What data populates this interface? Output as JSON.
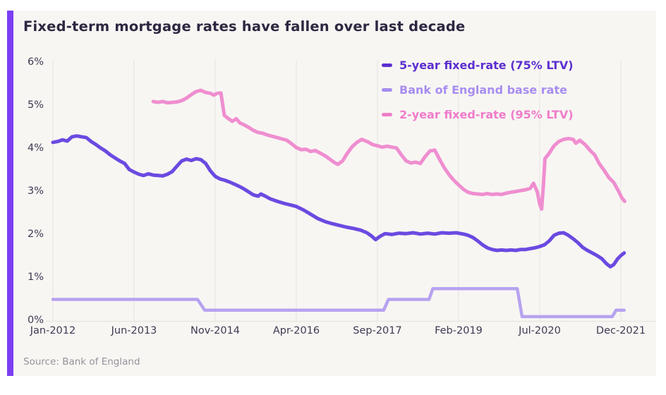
{
  "theme": {
    "accent": "#7b3ff2",
    "card_bg": "#f8f6f3",
    "title_color": "#2e2741",
    "tick_color": "#3f3a52",
    "grid_color": "#eceae6",
    "axis_line_color": "#e7e4df",
    "source_color": "#96939b"
  },
  "chart_data": {
    "type": "line",
    "title": "Fixed-term mortgage rates have fallen over last decade",
    "source": "Source: Bank of England",
    "x_unit": "months since Jan-2012",
    "xlim_months": [
      0,
      119.8
    ],
    "ylim": [
      0,
      6
    ],
    "grid": "vertical-only",
    "legend_position": "top-right",
    "y_ticks": [
      {
        "label": "0%",
        "value": 0
      },
      {
        "label": "1%",
        "value": 1
      },
      {
        "label": "2%",
        "value": 2
      },
      {
        "label": "3%",
        "value": 3
      },
      {
        "label": "4%",
        "value": 4
      },
      {
        "label": "5%",
        "value": 5
      },
      {
        "label": "6%",
        "value": 6
      }
    ],
    "x_ticks": [
      {
        "label": "Jan-2012",
        "month": 0
      },
      {
        "label": "Jun-2013",
        "month": 17
      },
      {
        "label": "Nov-2014",
        "month": 34
      },
      {
        "label": "Apr-2016",
        "month": 51
      },
      {
        "label": "Sep-2017",
        "month": 68
      },
      {
        "label": "Feb-2019",
        "month": 85
      },
      {
        "label": "Jul-2020",
        "month": 102
      },
      {
        "label": "Dec-2021",
        "month": 119
      }
    ],
    "series": [
      {
        "id": "five-year-fixed-rate-75-ltv",
        "name": "5-year fixed-rate (75% LTV)",
        "color": "#6b4ae1",
        "legend_color": "#5c2fd0",
        "width": 5,
        "points": [
          [
            0,
            4.15
          ],
          [
            1,
            4.17
          ],
          [
            2,
            4.21
          ],
          [
            3,
            4.18
          ],
          [
            4,
            4.28
          ],
          [
            5,
            4.3
          ],
          [
            6,
            4.28
          ],
          [
            7,
            4.26
          ],
          [
            8,
            4.17
          ],
          [
            9,
            4.1
          ],
          [
            10,
            4.02
          ],
          [
            11,
            3.95
          ],
          [
            12,
            3.86
          ],
          [
            13,
            3.79
          ],
          [
            14,
            3.72
          ],
          [
            15,
            3.66
          ],
          [
            16,
            3.52
          ],
          [
            17,
            3.46
          ],
          [
            18,
            3.41
          ],
          [
            19,
            3.38
          ],
          [
            20,
            3.42
          ],
          [
            21,
            3.39
          ],
          [
            22,
            3.38
          ],
          [
            23,
            3.37
          ],
          [
            24,
            3.41
          ],
          [
            25,
            3.47
          ],
          [
            26,
            3.6
          ],
          [
            27,
            3.72
          ],
          [
            28,
            3.76
          ],
          [
            29,
            3.73
          ],
          [
            30,
            3.77
          ],
          [
            31,
            3.75
          ],
          [
            32,
            3.66
          ],
          [
            33,
            3.49
          ],
          [
            34,
            3.36
          ],
          [
            35,
            3.3
          ],
          [
            36,
            3.27
          ],
          [
            37,
            3.23
          ],
          [
            38,
            3.18
          ],
          [
            39,
            3.13
          ],
          [
            40,
            3.07
          ],
          [
            41,
            3.0
          ],
          [
            42,
            2.93
          ],
          [
            43,
            2.9
          ],
          [
            43.6,
            2.95
          ],
          [
            44.5,
            2.9
          ],
          [
            45.5,
            2.84
          ],
          [
            47,
            2.78
          ],
          [
            48.5,
            2.73
          ],
          [
            50,
            2.69
          ],
          [
            51,
            2.66
          ],
          [
            52.5,
            2.58
          ],
          [
            54,
            2.48
          ],
          [
            55.5,
            2.38
          ],
          [
            57,
            2.31
          ],
          [
            58.5,
            2.26
          ],
          [
            60,
            2.22
          ],
          [
            61.5,
            2.18
          ],
          [
            63,
            2.15
          ],
          [
            64.5,
            2.11
          ],
          [
            65.8,
            2.05
          ],
          [
            66.8,
            1.97
          ],
          [
            67.6,
            1.89
          ],
          [
            68.6,
            1.97
          ],
          [
            69.6,
            2.03
          ],
          [
            71,
            2.01
          ],
          [
            72.5,
            2.04
          ],
          [
            74,
            2.03
          ],
          [
            75.5,
            2.05
          ],
          [
            77,
            2.02
          ],
          [
            78.5,
            2.04
          ],
          [
            80,
            2.02
          ],
          [
            81.5,
            2.05
          ],
          [
            83,
            2.04
          ],
          [
            84.5,
            2.05
          ],
          [
            86,
            2.02
          ],
          [
            87,
            1.99
          ],
          [
            88,
            1.94
          ],
          [
            89,
            1.86
          ],
          [
            90,
            1.77
          ],
          [
            91,
            1.7
          ],
          [
            92,
            1.66
          ],
          [
            93,
            1.64
          ],
          [
            94,
            1.65
          ],
          [
            95,
            1.64
          ],
          [
            96,
            1.65
          ],
          [
            97,
            1.64
          ],
          [
            98,
            1.66
          ],
          [
            99,
            1.66
          ],
          [
            100,
            1.68
          ],
          [
            101,
            1.7
          ],
          [
            102,
            1.73
          ],
          [
            103,
            1.77
          ],
          [
            104,
            1.86
          ],
          [
            105,
            1.99
          ],
          [
            106,
            2.04
          ],
          [
            107,
            2.05
          ],
          [
            108,
            1.99
          ],
          [
            109,
            1.91
          ],
          [
            110,
            1.82
          ],
          [
            111,
            1.71
          ],
          [
            112,
            1.64
          ],
          [
            113,
            1.58
          ],
          [
            114,
            1.52
          ],
          [
            115,
            1.45
          ],
          [
            116,
            1.33
          ],
          [
            116.8,
            1.26
          ],
          [
            117.5,
            1.31
          ],
          [
            118.3,
            1.44
          ],
          [
            119,
            1.52
          ],
          [
            119.7,
            1.58
          ]
        ]
      },
      {
        "id": "bank-of-england-base-rate",
        "name": "Bank of England base rate",
        "color": "#b7a2f0",
        "legend_color": "#a78df0",
        "width": 4.5,
        "points": [
          [
            0,
            0.5
          ],
          [
            30.3,
            0.5
          ],
          [
            31.8,
            0.25
          ],
          [
            69.3,
            0.25
          ],
          [
            70.3,
            0.5
          ],
          [
            78.8,
            0.5
          ],
          [
            79.6,
            0.75
          ],
          [
            97.3,
            0.75
          ],
          [
            98.3,
            0.1
          ],
          [
            117.2,
            0.1
          ],
          [
            118,
            0.25
          ],
          [
            119.7,
            0.25
          ]
        ]
      },
      {
        "id": "two-year-fixed-rate-95-ltv",
        "name": "2-year fixed-rate (95% LTV)",
        "color": "#ef8ed0",
        "legend_color": "#f07cc9",
        "width": 5,
        "points": [
          [
            21,
            5.1
          ],
          [
            22,
            5.08
          ],
          [
            23,
            5.1
          ],
          [
            24,
            5.07
          ],
          [
            25,
            5.08
          ],
          [
            26,
            5.09
          ],
          [
            27,
            5.12
          ],
          [
            28,
            5.18
          ],
          [
            29,
            5.26
          ],
          [
            30,
            5.33
          ],
          [
            31,
            5.36
          ],
          [
            32,
            5.31
          ],
          [
            33,
            5.29
          ],
          [
            33.7,
            5.25
          ],
          [
            34.4,
            5.29
          ],
          [
            35.2,
            5.3
          ],
          [
            35.9,
            4.78
          ],
          [
            36.8,
            4.7
          ],
          [
            37.6,
            4.64
          ],
          [
            38.4,
            4.7
          ],
          [
            39.2,
            4.6
          ],
          [
            40,
            4.56
          ],
          [
            41,
            4.5
          ],
          [
            42,
            4.43
          ],
          [
            43,
            4.38
          ],
          [
            44,
            4.36
          ],
          [
            45,
            4.32
          ],
          [
            46,
            4.29
          ],
          [
            47,
            4.26
          ],
          [
            48,
            4.23
          ],
          [
            49,
            4.2
          ],
          [
            50,
            4.12
          ],
          [
            51,
            4.03
          ],
          [
            52,
            3.98
          ],
          [
            53,
            3.99
          ],
          [
            54,
            3.94
          ],
          [
            55,
            3.96
          ],
          [
            56,
            3.9
          ],
          [
            57,
            3.84
          ],
          [
            58,
            3.76
          ],
          [
            59,
            3.68
          ],
          [
            59.7,
            3.64
          ],
          [
            60.7,
            3.72
          ],
          [
            61.7,
            3.9
          ],
          [
            62.7,
            4.05
          ],
          [
            63.7,
            4.15
          ],
          [
            64.7,
            4.22
          ],
          [
            66,
            4.16
          ],
          [
            67,
            4.1
          ],
          [
            68,
            4.07
          ],
          [
            69,
            4.04
          ],
          [
            70,
            4.06
          ],
          [
            71,
            4.04
          ],
          [
            72,
            4.02
          ],
          [
            73,
            3.86
          ],
          [
            74,
            3.72
          ],
          [
            75,
            3.67
          ],
          [
            76,
            3.69
          ],
          [
            77,
            3.66
          ],
          [
            78,
            3.82
          ],
          [
            79,
            3.95
          ],
          [
            80,
            3.97
          ],
          [
            81,
            3.76
          ],
          [
            82,
            3.56
          ],
          [
            83,
            3.4
          ],
          [
            84,
            3.27
          ],
          [
            85,
            3.16
          ],
          [
            86,
            3.06
          ],
          [
            87,
            2.99
          ],
          [
            88,
            2.96
          ],
          [
            89,
            2.95
          ],
          [
            90,
            2.94
          ],
          [
            91,
            2.96
          ],
          [
            92,
            2.94
          ],
          [
            93,
            2.95
          ],
          [
            94,
            2.94
          ],
          [
            95,
            2.97
          ],
          [
            96,
            2.99
          ],
          [
            97,
            3.01
          ],
          [
            98,
            3.03
          ],
          [
            99,
            3.05
          ],
          [
            100,
            3.08
          ],
          [
            100.7,
            3.2
          ],
          [
            101.5,
            3.0
          ],
          [
            102,
            2.72
          ],
          [
            102.4,
            2.6
          ],
          [
            102.8,
            3.2
          ],
          [
            103.1,
            3.77
          ],
          [
            104,
            3.9
          ],
          [
            105,
            4.07
          ],
          [
            106,
            4.17
          ],
          [
            107,
            4.22
          ],
          [
            108,
            4.24
          ],
          [
            109,
            4.22
          ],
          [
            109.6,
            4.13
          ],
          [
            110.4,
            4.2
          ],
          [
            111.5,
            4.1
          ],
          [
            112.5,
            3.97
          ],
          [
            113.5,
            3.86
          ],
          [
            114.5,
            3.65
          ],
          [
            115.5,
            3.5
          ],
          [
            116.5,
            3.33
          ],
          [
            117.5,
            3.22
          ],
          [
            118.5,
            3.02
          ],
          [
            119.2,
            2.86
          ],
          [
            119.8,
            2.78
          ]
        ]
      }
    ]
  }
}
